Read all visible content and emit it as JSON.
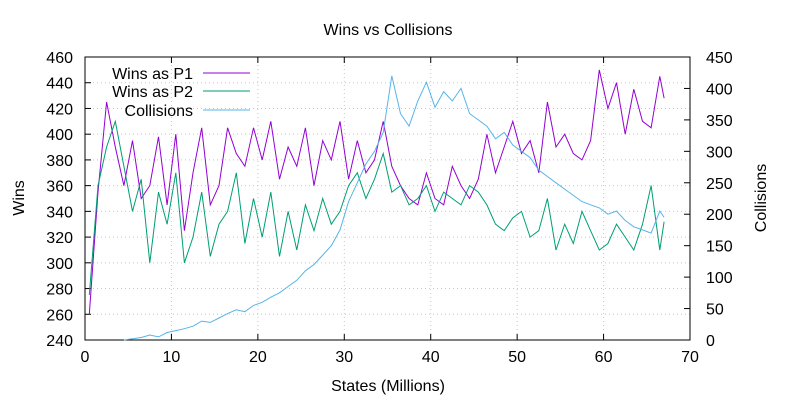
{
  "chart_data": {
    "type": "line",
    "title": "Wins vs Collisions",
    "xlabel": "States (Millions)",
    "ylabel": "Wins",
    "y2label": "Collisions",
    "xlim": [
      0,
      70
    ],
    "ylim": [
      240,
      460
    ],
    "y2lim": [
      0,
      450
    ],
    "xticks": [
      "0",
      "10",
      "20",
      "30",
      "40",
      "50",
      "60",
      "70"
    ],
    "yticks": [
      "240",
      "260",
      "280",
      "300",
      "320",
      "340",
      "360",
      "380",
      "400",
      "420",
      "440",
      "460"
    ],
    "y2ticks": [
      "0",
      "50",
      "100",
      "150",
      "200",
      "250",
      "300",
      "350",
      "400",
      "450"
    ],
    "grid": true,
    "legend_position": "top-left",
    "series": [
      {
        "name": "Wins as P1",
        "axis": "left",
        "color": "#9400d3",
        "x": [
          0.5,
          1.5,
          2.5,
          3.5,
          4.5,
          5.5,
          6.5,
          7.5,
          8.5,
          9.5,
          10.5,
          11.5,
          12.5,
          13.5,
          14.5,
          15.5,
          16.5,
          17.5,
          18.5,
          19.5,
          20.5,
          21.5,
          22.5,
          23.5,
          24.5,
          25.5,
          26.5,
          27.5,
          28.5,
          29.5,
          30.5,
          31.5,
          32.5,
          33.5,
          34.5,
          35.5,
          36.5,
          37.5,
          38.5,
          39.5,
          40.5,
          41.5,
          42.5,
          43.5,
          44.5,
          45.5,
          46.5,
          47.5,
          48.5,
          49.5,
          50.5,
          51.5,
          52.5,
          53.5,
          54.5,
          55.5,
          56.5,
          57.5,
          58.5,
          59.5,
          60.5,
          61.5,
          62.5,
          63.5,
          64.5,
          65.5,
          66.5,
          67
        ],
        "y": [
          260,
          355,
          425,
          390,
          360,
          395,
          350,
          360,
          398,
          345,
          400,
          325,
          370,
          405,
          345,
          360,
          405,
          385,
          375,
          405,
          380,
          410,
          365,
          390,
          375,
          405,
          360,
          395,
          380,
          410,
          365,
          395,
          370,
          380,
          410,
          375,
          360,
          350,
          345,
          370,
          350,
          345,
          375,
          360,
          350,
          365,
          400,
          370,
          390,
          410,
          385,
          395,
          370,
          425,
          390,
          400,
          385,
          380,
          395,
          450,
          420,
          440,
          400,
          435,
          410,
          405,
          445,
          428
        ]
      },
      {
        "name": "Wins as P2",
        "axis": "left",
        "color": "#009e73",
        "x": [
          0.5,
          1.5,
          2.5,
          3.5,
          4.5,
          5.5,
          6.5,
          7.5,
          8.5,
          9.5,
          10.5,
          11.5,
          12.5,
          13.5,
          14.5,
          15.5,
          16.5,
          17.5,
          18.5,
          19.5,
          20.5,
          21.5,
          22.5,
          23.5,
          24.5,
          25.5,
          26.5,
          27.5,
          28.5,
          29.5,
          30.5,
          31.5,
          32.5,
          33.5,
          34.5,
          35.5,
          36.5,
          37.5,
          38.5,
          39.5,
          40.5,
          41.5,
          42.5,
          43.5,
          44.5,
          45.5,
          46.5,
          47.5,
          48.5,
          49.5,
          50.5,
          51.5,
          52.5,
          53.5,
          54.5,
          55.5,
          56.5,
          57.5,
          58.5,
          59.5,
          60.5,
          61.5,
          62.5,
          63.5,
          64.5,
          65.5,
          66.5,
          67
        ],
        "y": [
          275,
          360,
          390,
          410,
          375,
          340,
          365,
          300,
          355,
          330,
          370,
          300,
          320,
          355,
          305,
          330,
          340,
          370,
          315,
          350,
          320,
          355,
          305,
          340,
          310,
          345,
          325,
          350,
          330,
          340,
          360,
          370,
          350,
          365,
          385,
          355,
          360,
          345,
          350,
          360,
          340,
          355,
          350,
          345,
          360,
          355,
          345,
          330,
          325,
          335,
          340,
          320,
          325,
          350,
          310,
          330,
          315,
          340,
          325,
          310,
          315,
          330,
          320,
          310,
          330,
          360,
          310,
          332
        ]
      },
      {
        "name": "Collisions",
        "axis": "right",
        "color": "#56b4e9",
        "x": [
          4.5,
          5.5,
          6.5,
          7.5,
          8.5,
          9.5,
          10.5,
          11.5,
          12.5,
          13.5,
          14.5,
          15.5,
          16.5,
          17.5,
          18.5,
          19.5,
          20.5,
          21.5,
          22.5,
          23.5,
          24.5,
          25.5,
          26.5,
          27.5,
          28.5,
          29.5,
          30.5,
          31.5,
          32.5,
          33.5,
          34.5,
          35.5,
          36.5,
          37.5,
          38.5,
          39.5,
          40.5,
          41.5,
          42.5,
          43.5,
          44.5,
          45.5,
          46.5,
          47.5,
          48.5,
          49.5,
          50.5,
          51.5,
          52.5,
          53.5,
          54.5,
          55.5,
          56.5,
          57.5,
          58.5,
          59.5,
          60.5,
          61.5,
          62.5,
          63.5,
          64.5,
          65.5,
          66.5,
          67
        ],
        "y": [
          0,
          2,
          4,
          8,
          5,
          12,
          15,
          18,
          22,
          30,
          28,
          35,
          42,
          48,
          45,
          55,
          60,
          68,
          75,
          85,
          95,
          110,
          120,
          135,
          150,
          175,
          220,
          250,
          280,
          300,
          330,
          420,
          360,
          340,
          380,
          410,
          370,
          395,
          380,
          400,
          360,
          350,
          340,
          320,
          330,
          310,
          300,
          290,
          270,
          260,
          250,
          240,
          230,
          220,
          215,
          210,
          200,
          205,
          190,
          180,
          175,
          170,
          205,
          195
        ]
      }
    ]
  }
}
